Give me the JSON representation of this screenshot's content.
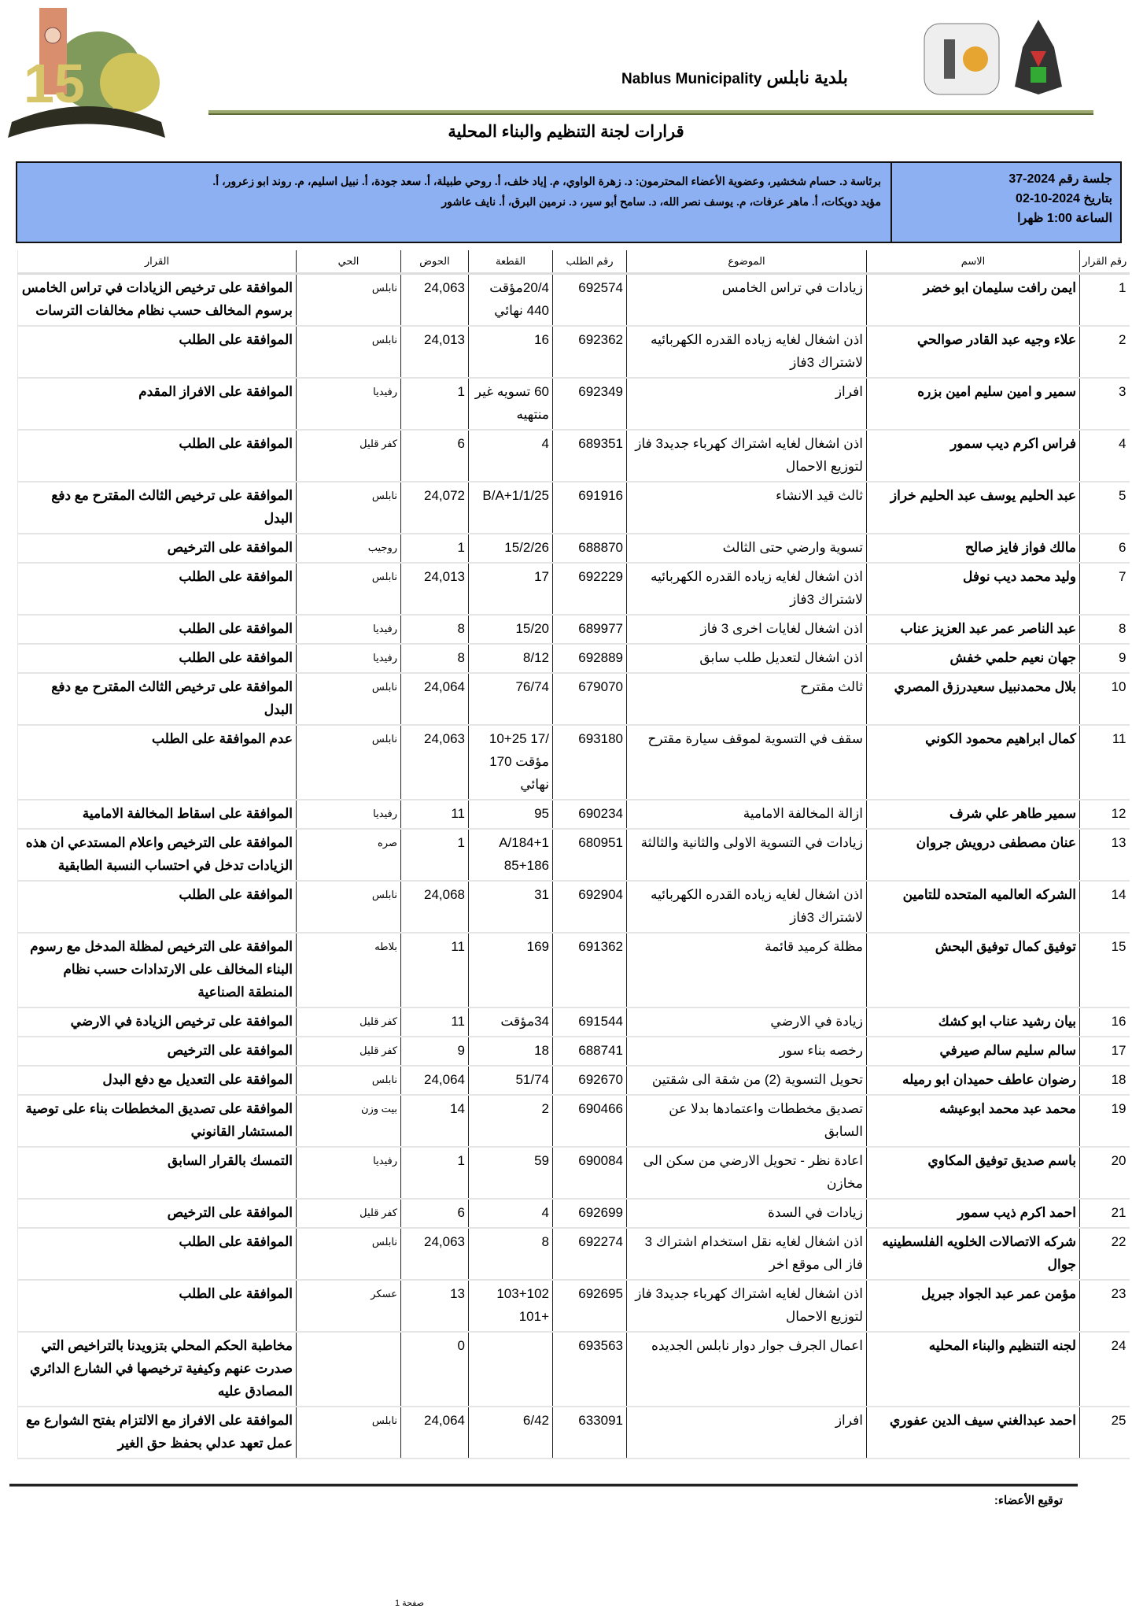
{
  "header": {
    "municipality_ar": "بلدية نابلس",
    "municipality_en": "Nablus Municipality",
    "logo_left_text": "نابلس 150",
    "title": "قرارات لجنة التنظيم والبناء المحلية"
  },
  "session": {
    "number": "جلسة رقم 2024-37",
    "date": "بتاريخ 2024-10-02",
    "time": "الساعة 1:00 ظهرا",
    "members_line1": "برئاسة د. حسام شخشير، وعضوية الأعضاء المحترمون: د. زهرة الواوي، م. إياد خلف، أ. روحي طبيلة، أ. سعد جودة، أ. نبيل اسليم، م. روند ابو زعرور، أ.",
    "members_line2": "مؤيد دويكات، أ. ماهر عرفات، م. يوسف نصر الله، د. سامح أبو سير، د. نرمين البرق، أ. نايف عاشور"
  },
  "table": {
    "headers": [
      "رقم القرار",
      "الاسم",
      "الموضوع",
      "رقم الطلب",
      "القطعة",
      "الحوض",
      "الحي",
      "القرار"
    ],
    "rows": [
      [
        "1",
        "ايمن رافت سليمان ابو خضر",
        "زيادات في تراس الخامس",
        "692574",
        "20/4مؤقت 440 نهائي",
        "24,063",
        "نابلس",
        "الموافقة على ترخيص الزيادات في تراس الخامس برسوم المخالف حسب نظام مخالفات الترسات"
      ],
      [
        "2",
        "علاء وجيه عبد القادر صوالحي",
        "اذن اشغال لغايه زياده القدره الكهربائيه لاشتراك 3فاز",
        "692362",
        "16",
        "24,013",
        "نابلس",
        "الموافقة على الطلب"
      ],
      [
        "3",
        "سمير و امين سليم امين بزره",
        "افراز",
        "692349",
        "60 تسويه غير منتهيه",
        "1",
        "رفيديا",
        "الموافقة على الافراز المقدم"
      ],
      [
        "4",
        "فراس اكرم ديب سمور",
        "اذن اشغال لغايه اشتراك كهرباء جديد3 فاز لتوزيع الاحمال",
        "689351",
        "4",
        "6",
        "كفر قليل",
        "الموافقة على الطلب"
      ],
      [
        "5",
        "عبد الحليم يوسف عبد الحليم خراز",
        "ثالث قيد الانشاء",
        "691916",
        "B/A+1/1/25",
        "24,072",
        "نابلس",
        "الموافقة على ترخيص الثالث المقترح مع دفع البدل"
      ],
      [
        "6",
        "مالك فواز فايز صالح",
        "تسوية وارضي حتى الثالث",
        "688870",
        "15/2/26",
        "1",
        "روجيب",
        "الموافقة على الترخيص"
      ],
      [
        "7",
        "وليد محمد ديب نوفل",
        "اذن اشغال لغايه زياده القدره الكهربائيه لاشتراك 3فاز",
        "692229",
        "17",
        "24,013",
        "نابلس",
        "الموافقة على الطلب"
      ],
      [
        "8",
        "عبد الناصر عمر عبد العزيز عناب",
        "اذن اشغال لغايات اخرى 3 فاز",
        "689977",
        "15/20",
        "8",
        "رفيديا",
        "الموافقة على الطلب"
      ],
      [
        "9",
        "جهان نعيم حلمي خفش",
        "اذن اشغال لتعديل طلب سابق",
        "692889",
        "8/12",
        "8",
        "رفيديا",
        "الموافقة على الطلب"
      ],
      [
        "10",
        "بلال محمدنبيل سعيدرزق المصري",
        "ثالث مقترح",
        "679070",
        "76/74",
        "24,064",
        "نابلس",
        "الموافقة على ترخيص الثالث المقترح مع دفع البدل"
      ],
      [
        "11",
        "كمال ابراهيم محمود الكوني",
        "سقف في التسوية لموقف سيارة مقترح",
        "693180",
        "/17 10+25 مؤقت 170 نهائي",
        "24,063",
        "نابلس",
        "عدم الموافقة على الطلب"
      ],
      [
        "12",
        "سمير طاهر علي شرف",
        "ازالة المخالفة الامامية",
        "690234",
        "95",
        "11",
        "رفيديا",
        "الموافقة على اسقاط المخالفة الامامية"
      ],
      [
        "13",
        "عنان مصطفى درويش جروان",
        "زيادات في التسوية الاولى والثانية والثالثة",
        "680951",
        "A/184+1 85+186",
        "1",
        "صره",
        "الموافقة على الترخيص واعلام المستدعي ان هذه الزيادات تدخل في احتساب النسبة الطابقية"
      ],
      [
        "14",
        "الشركه العالميه المتحده للتامين",
        "اذن اشغال لغايه زياده القدره الكهربائيه لاشتراك 3فاز",
        "692904",
        "31",
        "24,068",
        "نابلس",
        "الموافقة على الطلب"
      ],
      [
        "15",
        "توفيق كمال توفيق البحش",
        "مظلة كرميد قائمة",
        "691362",
        "169",
        "11",
        "بلاطه",
        "الموافقة على الترخيص لمظلة المدخل مع رسوم البناء المخالف على الارتدادات حسب نظام المنطقة الصناعية"
      ],
      [
        "16",
        "بيان رشيد عناب ابو كشك",
        "زيادة في الارضي",
        "691544",
        "34مؤقت",
        "11",
        "كفر قليل",
        "الموافقة على ترخيص الزيادة في الارضي"
      ],
      [
        "17",
        "سالم سليم سالم صيرفي",
        "رخصه بناء سور",
        "688741",
        "18",
        "9",
        "كفر قليل",
        "الموافقة على الترخيص"
      ],
      [
        "18",
        "رضوان عاطف حميدان ابو رميله",
        "تحويل التسوية (2) من شقة الى شقتين",
        "692670",
        "51/74",
        "24,064",
        "نابلس",
        "الموافقة على التعديل مع دفع البدل"
      ],
      [
        "19",
        "محمد عبد محمد ابوعيشه",
        "تصديق مخططات واعتمادها بدلا عن السابق",
        "690466",
        "2",
        "14",
        "بيت وزن",
        "الموافقة على تصديق المخططات بناء على توصية المستشار القانوني"
      ],
      [
        "20",
        "باسم صديق توفيق المكاوي",
        "اعادة نظر - تحويل الارضي من سكن الى مخازن",
        "690084",
        "59",
        "1",
        "رفيديا",
        "التمسك بالقرار السابق"
      ],
      [
        "21",
        "احمد اكرم ذيب سمور",
        "زيادات في السدة",
        "692699",
        "4",
        "6",
        "كفر قليل",
        "الموافقة على الترخيص"
      ],
      [
        "22",
        "شركه الاتصالات الخلويه الفلسطينيه جوال",
        "اذن اشغال لغايه نقل استخدام اشتراك 3 فاز الى موقع اخر",
        "692274",
        "8",
        "24,063",
        "نابلس",
        "الموافقة على الطلب"
      ],
      [
        "23",
        "مؤمن عمر عبد الجواد جبريل",
        "اذن اشغال لغايه اشتراك كهرباء جديد3 فاز لتوزيع الاحمال",
        "692695",
        "103+102 +101",
        "13",
        "عسكر",
        "الموافقة على الطلب"
      ],
      [
        "24",
        "لجنه التنظيم والبناء المحليه",
        "اعمال الجرف جوار دوار نابلس الجديده",
        "693563",
        "",
        "0",
        "",
        "مخاطبة الحكم المحلي بتزويدنا بالتراخيص التي صدرت عنهم وكيفية ترخيصها في الشارع الدائري المصادق عليه"
      ],
      [
        "25",
        "احمد عبدالغني سيف الدين عفوري",
        "افراز",
        "633091",
        "6/42",
        "24,064",
        "نابلس",
        "الموافقة على الافراز مع الالتزام بفتح الشوارع مع عمل تعهد عدلي بحفظ حق الغير"
      ]
    ]
  },
  "footer": {
    "signature_label": "توقيع الأعضاء:",
    "page_label": "صفحة 1"
  },
  "colors": {
    "info_bg": "#8db0f3",
    "rule": "#9aa86e"
  }
}
